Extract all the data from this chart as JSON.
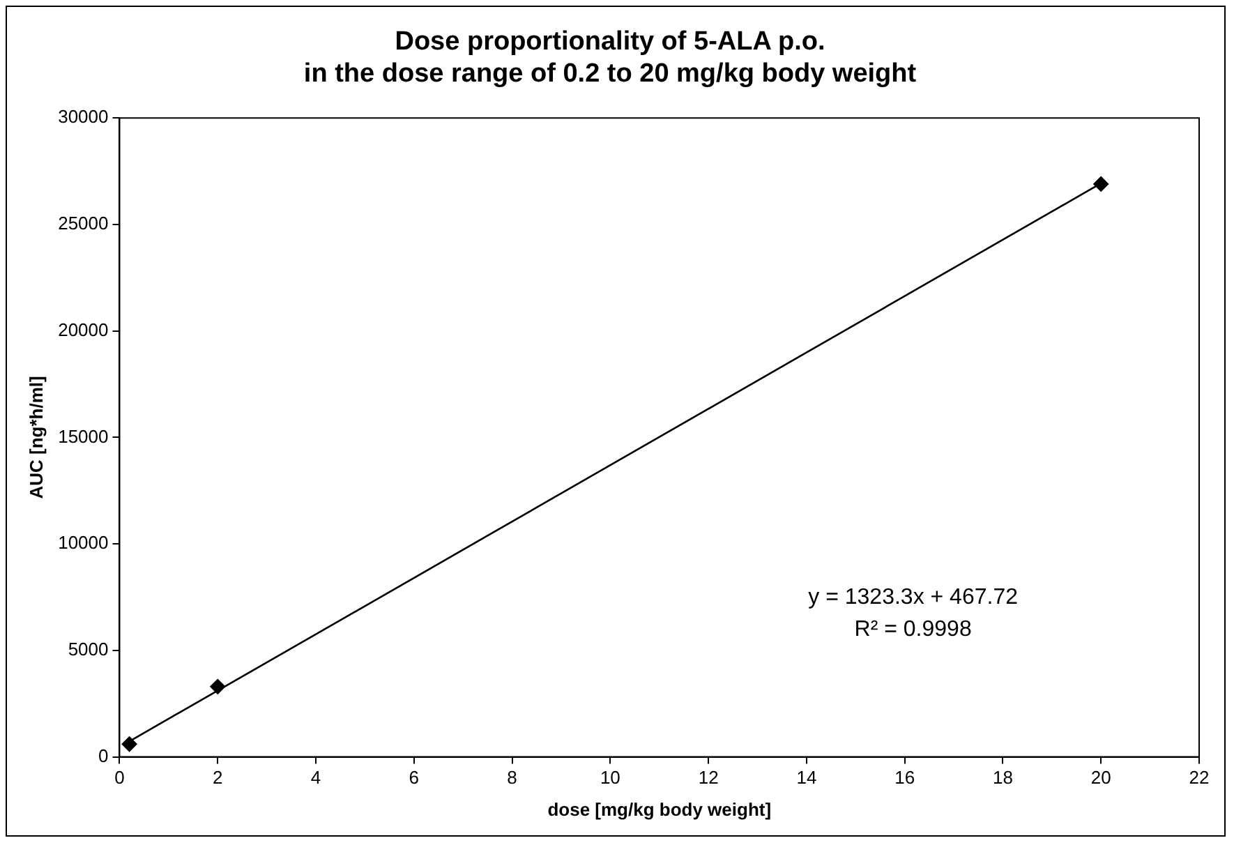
{
  "chart_data": {
    "type": "scatter",
    "title": "Dose proportionality of 5-ALA p.o.\nin the dose range of 0.2 to 20 mg/kg body weight",
    "xlabel": "dose [mg/kg body weight]",
    "ylabel": "AUC [ng*h/ml]",
    "series": [
      {
        "type": "scatter",
        "color": "#000000",
        "x": [
          0.2,
          2,
          20
        ],
        "values": [
          600,
          3300,
          26900
        ]
      },
      {
        "type": "line",
        "color": "#000000",
        "marker": "none",
        "x": [
          0.2,
          20
        ],
        "values": [
          730,
          26930
        ]
      }
    ],
    "xlim": [
      0,
      22
    ],
    "xticks": [
      0,
      2,
      4,
      6,
      8,
      10,
      12,
      14,
      16,
      18,
      20,
      22
    ],
    "ylim": [
      0,
      30000
    ],
    "yticks": [
      0,
      5000,
      10000,
      15000,
      20000,
      25000,
      30000
    ],
    "annotations": [
      "y = 1323.3x + 467.72",
      "R² = 0.9998"
    ],
    "grid": false,
    "legend": false,
    "marker": "diamond",
    "line_style": "solid"
  }
}
